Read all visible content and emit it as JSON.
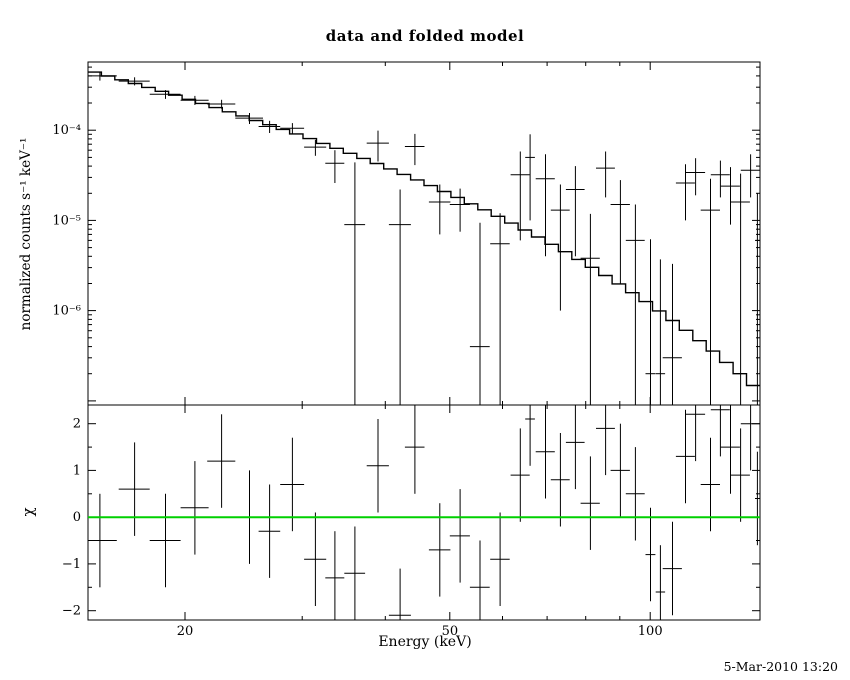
{
  "plot": {
    "title": "data and folded model",
    "xlabel": "Energy (keV)",
    "ylabel_top": "normalized counts s⁻¹ keV⁻¹",
    "ylabel_bottom": "χ",
    "timestamp": "5-Mar-2010 13:20",
    "foreground_color": "#000000",
    "background_color": "#ffffff"
  },
  "chart_data": [
    {
      "type": "line",
      "panel": "spectrum",
      "title": "data and folded model",
      "xscale": "log",
      "yscale": "log",
      "xlim": [
        14.3,
        146.2
      ],
      "ylim": [
        9e-08,
        0.00057
      ],
      "xlabel": "Energy (keV)",
      "ylabel": "normalized counts s⁻¹ keV⁻¹",
      "grid": false,
      "x_ticks": {
        "major": [
          20,
          50,
          100
        ],
        "labels": [
          "20",
          "50",
          "100"
        ],
        "minor": [
          30,
          40,
          60,
          70,
          80,
          90
        ]
      },
      "y_ticks": {
        "major": [
          0.0001,
          1e-05,
          1e-06
        ],
        "labels": [
          "10⁻⁴",
          "10⁻⁵",
          "10⁻⁶"
        ]
      },
      "model_histogram": {
        "name": "folded model",
        "color": "#000000",
        "bin_edges": [
          14.3,
          14.98,
          15.69,
          16.44,
          17.22,
          18.04,
          18.9,
          19.8,
          20.74,
          21.73,
          22.76,
          23.85,
          24.98,
          26.17,
          27.42,
          28.72,
          30.09,
          31.52,
          33.02,
          34.59,
          36.24,
          37.96,
          39.77,
          41.66,
          43.65,
          45.72,
          47.9,
          50.18,
          52.57,
          55.07,
          57.69,
          60.44,
          63.31,
          66.33,
          69.48,
          72.79,
          76.25,
          79.88,
          83.68,
          87.66,
          91.83,
          96.2,
          100.78,
          105.57,
          110.59,
          115.86,
          121.37,
          127.14,
          133.19,
          139.52,
          146.16
        ],
        "values": [
          0.00044,
          0.000399,
          0.000362,
          0.000329,
          0.000298,
          0.00027,
          0.000244,
          0.00022,
          0.000198,
          0.000178,
          0.00016,
          0.000144,
          0.000128,
          0.000115,
          0.000102,
          9.09e-05,
          8.06e-05,
          7.14e-05,
          6.3e-05,
          5.55e-05,
          4.87e-05,
          4.27e-05,
          3.72e-05,
          3.24e-05,
          2.81e-05,
          2.43e-05,
          2.09e-05,
          1.8e-05,
          1.53e-05,
          1.31e-05,
          1.11e-05,
          9.34e-06,
          7.84e-06,
          6.55e-06,
          5.44e-06,
          4.5e-06,
          3.7e-06,
          3.02e-06,
          2.45e-06,
          1.98e-06,
          1.58e-06,
          1.26e-06,
          9.93e-07,
          7.78e-07,
          6.05e-07,
          4.65e-07,
          3.56e-07,
          2.67e-07,
          2e-07,
          1.48e-07
        ]
      },
      "data_points": {
        "name": "data",
        "color": "#000000",
        "marker": "cross-with-errors",
        "energy": [
          14.9,
          16.8,
          18.7,
          20.7,
          22.7,
          25.0,
          26.8,
          29.0,
          31.4,
          33.6,
          36.0,
          39.0,
          42.1,
          44.3,
          48.3,
          51.8,
          55.5,
          59.5,
          63.8,
          66.0,
          69.6,
          73.3,
          77.2,
          81.3,
          85.7,
          90.2,
          95.0,
          100.1,
          103.6,
          108.0,
          113.0,
          117.0,
          123.2,
          127.5,
          132.0,
          136.7,
          141.5,
          144.9
        ],
        "half_width": [
          0.9,
          0.9,
          1.0,
          1.0,
          1.1,
          1.2,
          1.0,
          1.2,
          1.2,
          1.1,
          1.3,
          1.5,
          1.6,
          1.5,
          1.8,
          1.8,
          1.9,
          2.0,
          2.1,
          1.1,
          2.3,
          2.4,
          2.5,
          2.7,
          2.8,
          3.0,
          3.1,
          1.7,
          1.7,
          3.6,
          3.7,
          3.9,
          4.1,
          4.2,
          4.4,
          4.5,
          4.7,
          1.2
        ],
        "value": [
          0.0004,
          0.00035,
          0.00025,
          0.000215,
          0.000195,
          0.000136,
          0.00011,
          0.000105,
          6.5e-05,
          4.3e-05,
          9e-06,
          7.2e-05,
          9e-06,
          6.6e-05,
          1.6e-05,
          1.5e-05,
          4e-07,
          5.5e-06,
          3.2e-05,
          5e-05,
          2.9e-05,
          1.3e-05,
          2.2e-05,
          3.8e-06,
          3.8e-05,
          1.5e-05,
          6e-06,
          2e-07,
          2e-07,
          3e-07,
          2.6e-05,
          3.4e-05,
          1.3e-05,
          3.2e-05,
          2.4e-05,
          1.6e-05,
          3.6e-05,
          6e-06
        ],
        "error": [
          4.5e-05,
          3.6e-05,
          2.8e-05,
          2.5e-05,
          2.2e-05,
          1.9e-05,
          1.7e-05,
          1.5e-05,
          1.3e-05,
          1.7e-05,
          3.5e-05,
          2.7e-05,
          1.3e-05,
          2.5e-05,
          9e-06,
          7.5e-06,
          9e-06,
          6.5e-06,
          2.6e-05,
          4e-05,
          2.5e-05,
          1.2e-05,
          1.8e-05,
          8e-06,
          2e-05,
          1.3e-05,
          9e-06,
          6e-06,
          3.5e-06,
          3e-06,
          1.6e-05,
          1.5e-05,
          1.6e-05,
          1.4e-05,
          1.5e-05,
          1.7e-05,
          1.8e-05,
          1.4e-05
        ]
      }
    },
    {
      "type": "scatter",
      "panel": "residuals",
      "xscale": "log",
      "xlim": [
        14.3,
        146.2
      ],
      "ylim": [
        -2.2,
        2.4
      ],
      "ylabel": "χ",
      "y_ticks": {
        "major": [
          -2,
          -1,
          0,
          1,
          2
        ],
        "labels": [
          "−2",
          "−1",
          "0",
          "1",
          "2"
        ]
      },
      "zero_line": {
        "value": 0,
        "color": "#00d000"
      },
      "points": {
        "name": "chi residuals",
        "color": "#000000",
        "error": 1,
        "energy": [
          14.9,
          16.8,
          18.7,
          20.7,
          22.7,
          25.0,
          26.8,
          29.0,
          31.4,
          33.6,
          36.0,
          39.0,
          42.1,
          44.3,
          48.3,
          51.8,
          55.5,
          59.5,
          63.8,
          66.0,
          69.6,
          73.3,
          77.2,
          81.3,
          85.7,
          90.2,
          95.0,
          100.1,
          103.6,
          108.0,
          113.0,
          117.0,
          123.2,
          127.5,
          132.0,
          136.7,
          141.5,
          144.9
        ],
        "half_width": [
          0.9,
          0.9,
          1.0,
          1.0,
          1.1,
          1.2,
          1.0,
          1.2,
          1.2,
          1.1,
          1.3,
          1.5,
          1.6,
          1.5,
          1.8,
          1.8,
          1.9,
          2.0,
          2.1,
          1.1,
          2.3,
          2.4,
          2.5,
          2.7,
          2.8,
          3.0,
          3.1,
          1.7,
          1.7,
          3.6,
          3.7,
          3.9,
          4.1,
          4.2,
          4.4,
          4.5,
          4.7,
          1.2
        ],
        "chi": [
          -0.5,
          0.6,
          -0.5,
          0.2,
          1.2,
          0.0,
          -0.3,
          0.7,
          -0.9,
          -1.3,
          -1.2,
          1.1,
          -2.1,
          1.5,
          -0.7,
          -0.4,
          -1.5,
          -0.9,
          0.9,
          2.1,
          1.4,
          0.8,
          1.6,
          0.3,
          1.9,
          1.0,
          0.5,
          -0.8,
          -1.6,
          -1.1,
          1.3,
          2.2,
          0.7,
          2.3,
          1.5,
          0.9,
          2.0,
          0.4
        ]
      }
    }
  ]
}
